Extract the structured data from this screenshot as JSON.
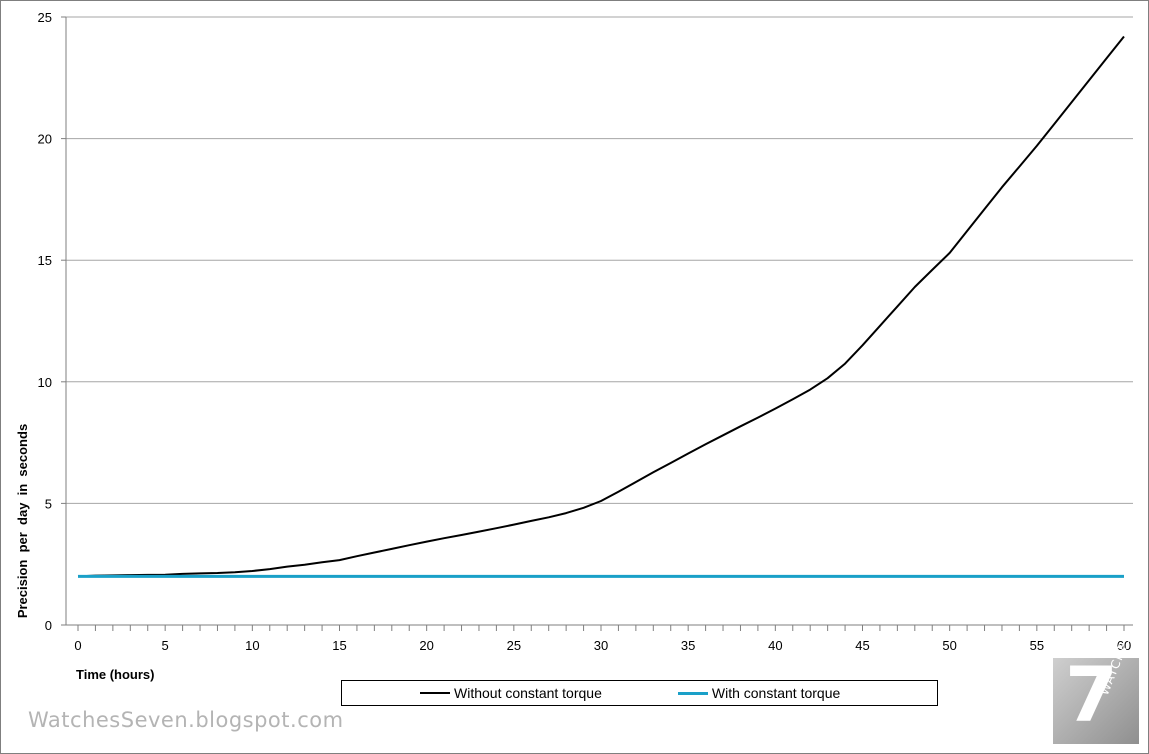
{
  "chart_data": {
    "type": "line",
    "title": "",
    "xlabel": "Time (hours)",
    "ylabel": "Precision  per  day  in  seconds",
    "xlim": [
      0,
      60
    ],
    "ylim": [
      0,
      25
    ],
    "x_ticks": [
      0,
      5,
      10,
      15,
      20,
      25,
      30,
      35,
      40,
      45,
      50,
      55,
      60
    ],
    "y_ticks": [
      0,
      5,
      10,
      15,
      20,
      25
    ],
    "grid": "horizontal",
    "legend_position": "bottom",
    "series": [
      {
        "name": "Without constant torque",
        "color": "#000000",
        "points": [
          [
            0,
            2.0
          ],
          [
            1,
            2.03
          ],
          [
            2,
            2.04
          ],
          [
            3,
            2.05
          ],
          [
            4,
            2.06
          ],
          [
            5,
            2.07
          ],
          [
            6,
            2.1
          ],
          [
            7,
            2.12
          ],
          [
            8,
            2.14
          ],
          [
            9,
            2.17
          ],
          [
            10,
            2.22
          ],
          [
            11,
            2.3
          ],
          [
            12,
            2.4
          ],
          [
            13,
            2.48
          ],
          [
            14,
            2.58
          ],
          [
            15,
            2.67
          ],
          [
            16,
            2.83
          ],
          [
            17,
            2.98
          ],
          [
            18,
            3.13
          ],
          [
            19,
            3.28
          ],
          [
            20,
            3.43
          ],
          [
            21,
            3.57
          ],
          [
            22,
            3.7
          ],
          [
            23,
            3.84
          ],
          [
            24,
            3.98
          ],
          [
            25,
            4.13
          ],
          [
            26,
            4.28
          ],
          [
            27,
            4.43
          ],
          [
            28,
            4.6
          ],
          [
            29,
            4.82
          ],
          [
            30,
            5.1
          ],
          [
            31,
            5.48
          ],
          [
            32,
            5.88
          ],
          [
            33,
            6.28
          ],
          [
            34,
            6.66
          ],
          [
            35,
            7.05
          ],
          [
            36,
            7.43
          ],
          [
            37,
            7.8
          ],
          [
            38,
            8.17
          ],
          [
            39,
            8.53
          ],
          [
            40,
            8.9
          ],
          [
            41,
            9.28
          ],
          [
            42,
            9.68
          ],
          [
            43,
            10.15
          ],
          [
            44,
            10.75
          ],
          [
            45,
            11.5
          ],
          [
            46,
            12.3
          ],
          [
            47,
            13.1
          ],
          [
            48,
            13.9
          ],
          [
            49,
            14.6
          ],
          [
            50,
            15.3
          ],
          [
            51,
            16.2
          ],
          [
            52,
            17.1
          ],
          [
            53,
            18.0
          ],
          [
            54,
            18.85
          ],
          [
            55,
            19.7
          ],
          [
            56,
            20.6
          ],
          [
            57,
            21.5
          ],
          [
            58,
            22.4
          ],
          [
            59,
            23.3
          ],
          [
            60,
            24.2
          ]
        ]
      },
      {
        "name": "With constant torque",
        "color": "#1aa0c8",
        "points": [
          [
            0,
            2.0
          ],
          [
            60,
            2.0
          ]
        ]
      }
    ]
  },
  "legend": {
    "item1": "Without constant torque",
    "item2": "With constant torque"
  },
  "watermark": "WatchesSeven.blogspot.com",
  "logo": {
    "number": "7",
    "text": "WATCHES"
  }
}
